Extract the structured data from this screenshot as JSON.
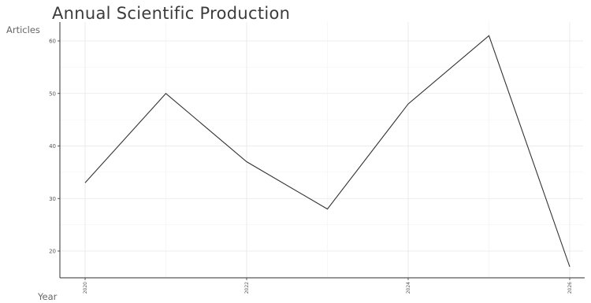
{
  "chart_data": {
    "type": "line",
    "title": "Annual Scientific Production",
    "xlabel": "Year",
    "ylabel": "Articles",
    "x": [
      2020,
      2021,
      2022,
      2023,
      2024,
      2025,
      2026
    ],
    "series": [
      {
        "values": [
          33,
          50,
          37,
          28,
          48,
          61,
          17
        ]
      }
    ],
    "xlim": [
      2020,
      2026
    ],
    "ylim": [
      15,
      63
    ],
    "x_ticks": [
      "2020",
      "2022",
      "2024",
      "2026"
    ],
    "y_ticks": [
      20,
      30,
      40,
      50,
      60
    ],
    "grid": true,
    "line_color": "#333333"
  }
}
